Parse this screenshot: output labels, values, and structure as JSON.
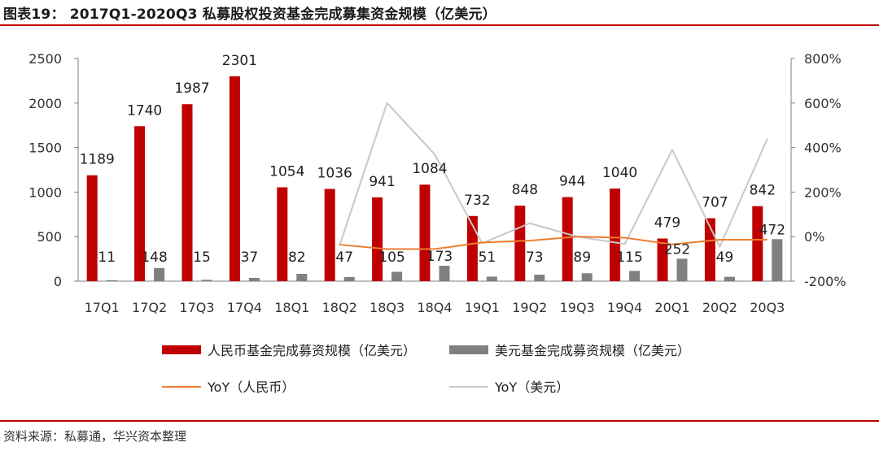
{
  "title": "图表19： 2017Q1-2020Q3 私募股权投资基金完成募集资金规模（亿美元）",
  "source": "资料来源：私募通，华兴资本整理",
  "colors": {
    "rmb_bar": "#c00000",
    "usd_bar": "#808080",
    "yoy_rmb": "#ed7d31",
    "yoy_usd": "#c8c8c8",
    "accent": "#c00000"
  },
  "chart_data": {
    "type": "bar",
    "categories": [
      "17Q1",
      "17Q2",
      "17Q3",
      "17Q4",
      "18Q1",
      "18Q2",
      "18Q3",
      "18Q4",
      "19Q1",
      "19Q2",
      "19Q3",
      "19Q4",
      "20Q1",
      "20Q2",
      "20Q3"
    ],
    "series": [
      {
        "name": "人民币基金完成募资规模（亿美元）",
        "kind": "bar",
        "axis": "left",
        "values": [
          1189,
          1740,
          1987,
          2301,
          1054,
          1036,
          941,
          1084,
          732,
          848,
          944,
          1040,
          479,
          707,
          842
        ]
      },
      {
        "name": "美元基金完成募资规模（亿美元）",
        "kind": "bar",
        "axis": "left",
        "values": [
          11,
          148,
          15,
          37,
          82,
          47,
          105,
          173,
          51,
          73,
          89,
          115,
          252,
          49,
          472
        ]
      },
      {
        "name": "YoY（人民币）",
        "kind": "line",
        "axis": "right",
        "values": [
          null,
          null,
          null,
          null,
          null,
          -36,
          -56,
          -56,
          -26,
          -18,
          0,
          -5,
          -35,
          -14,
          -14
        ]
      },
      {
        "name": "YoY（美元）",
        "kind": "line",
        "axis": "right",
        "values": [
          null,
          null,
          null,
          null,
          null,
          -40,
          600,
          370,
          -30,
          60,
          0,
          -33,
          390,
          -46,
          440
        ]
      }
    ],
    "left_axis": {
      "ylim": [
        0,
        2500
      ],
      "ticks": [
        "0",
        "500",
        "1000",
        "1500",
        "2000",
        "2500"
      ]
    },
    "right_axis": {
      "ylim": [
        -200,
        800
      ],
      "ticks": [
        "-200%",
        "0%",
        "200%",
        "400%",
        "600%",
        "800%"
      ]
    },
    "grid": false,
    "legend_position": "bottom"
  }
}
